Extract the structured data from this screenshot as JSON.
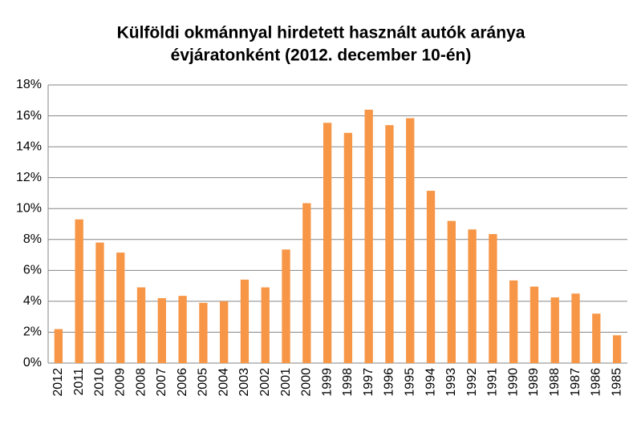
{
  "chart_data": {
    "type": "bar",
    "title": [
      "Külföldi okmánnyal hirdetett használt autók aránya",
      "évjáratonként (2012. december 10-én)"
    ],
    "categories": [
      "2012",
      "2011",
      "2010",
      "2009",
      "2008",
      "2007",
      "2006",
      "2005",
      "2004",
      "2003",
      "2002",
      "2001",
      "2000",
      "1999",
      "1998",
      "1997",
      "1996",
      "1995",
      "1994",
      "1993",
      "1992",
      "1991",
      "1990",
      "1989",
      "1988",
      "1987",
      "1986",
      "1985"
    ],
    "values": [
      2.2,
      9.3,
      7.8,
      7.15,
      4.9,
      4.2,
      4.35,
      3.9,
      4.0,
      5.4,
      4.9,
      7.35,
      10.35,
      15.55,
      14.9,
      16.4,
      15.4,
      15.85,
      11.15,
      9.2,
      8.65,
      8.35,
      5.35,
      4.95,
      4.25,
      4.5,
      3.2,
      1.8
    ],
    "color": "#f79646",
    "ylim": [
      0,
      18
    ],
    "yticks": [
      {
        "value": 0,
        "label": "0%"
      },
      {
        "value": 2,
        "label": "2%"
      },
      {
        "value": 4,
        "label": "4%"
      },
      {
        "value": 6,
        "label": "6%"
      },
      {
        "value": 8,
        "label": "8%"
      },
      {
        "value": 10,
        "label": "10%"
      },
      {
        "value": 12,
        "label": "12%"
      },
      {
        "value": 14,
        "label": "14%"
      },
      {
        "value": 16,
        "label": "16%"
      },
      {
        "value": 18,
        "label": "18%"
      }
    ],
    "grid": true
  }
}
